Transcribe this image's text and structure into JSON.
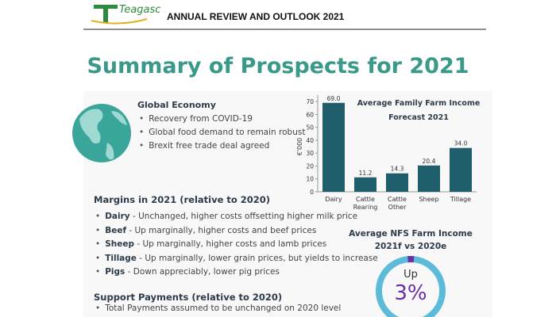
{
  "header": {
    "logo": "Teagasc",
    "title": "ANNUAL REVIEW AND OUTLOOK 2021"
  },
  "title": "Summary of Prospects for 2021",
  "global_economy": {
    "heading": "Global Economy",
    "items": [
      "Recovery from COVID-19",
      "Global food demand to remain robust",
      "Brexit free trade deal agreed"
    ]
  },
  "chart_data": {
    "type": "bar",
    "title": [
      "Average Family Farm Income",
      "Forecast 2021"
    ],
    "y_label": "€'000",
    "categories": [
      "Dairy",
      "Cattle Rearing",
      "Cattle Other",
      "Sheep",
      "Tillage"
    ],
    "values": [
      69.0,
      11.2,
      14.3,
      20.4,
      34.0
    ],
    "value_labels": [
      "69.0",
      "11.2",
      "14.3",
      "20.4",
      "34.0"
    ],
    "color": "#1f5f6b",
    "ylim": [
      0,
      75
    ],
    "yticks": [
      0,
      10,
      20,
      30,
      40,
      50,
      60,
      70
    ],
    "grid": false
  },
  "margins": {
    "heading": "Margins in 2021 (relative to 2020)",
    "items": [
      {
        "term": "Dairy",
        "text": " - Unchanged, higher costs offsetting higher milk price"
      },
      {
        "term": "Beef",
        "text": " - Up marginally,  higher costs and beef prices"
      },
      {
        "term": "Sheep",
        "text": " - Up marginally, higher costs and lamb prices"
      },
      {
        "term": "Tillage",
        "text": " - Up marginally, lower grain prices, but yields to increase"
      },
      {
        "term": "Pigs",
        "text": " - Down appreciably, lower pig prices"
      }
    ]
  },
  "nfs": {
    "title": [
      "Average NFS Farm Income",
      "2021f vs 2020e"
    ],
    "donut": {
      "label": "Up",
      "value": 3,
      "value_label": "3%"
    }
  },
  "support": {
    "heading": "Support Payments (relative to 2020)",
    "items": [
      "Total Payments assumed to be unchanged on 2020 level"
    ]
  }
}
